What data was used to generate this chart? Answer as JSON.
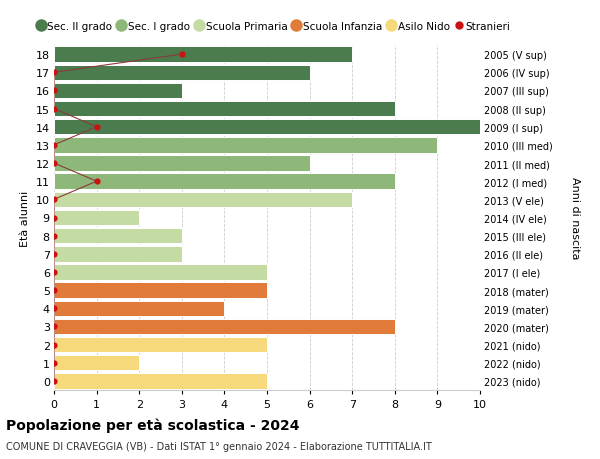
{
  "ages": [
    0,
    1,
    2,
    3,
    4,
    5,
    6,
    7,
    8,
    9,
    10,
    11,
    12,
    13,
    14,
    15,
    16,
    17,
    18
  ],
  "right_labels": [
    "2023 (nido)",
    "2022 (nido)",
    "2021 (nido)",
    "2020 (mater)",
    "2019 (mater)",
    "2018 (mater)",
    "2017 (I ele)",
    "2016 (II ele)",
    "2015 (III ele)",
    "2014 (IV ele)",
    "2013 (V ele)",
    "2012 (I med)",
    "2011 (II med)",
    "2010 (III med)",
    "2009 (I sup)",
    "2008 (II sup)",
    "2007 (III sup)",
    "2006 (IV sup)",
    "2005 (V sup)"
  ],
  "bar_values": [
    5,
    2,
    5,
    8,
    4,
    5,
    5,
    3,
    3,
    2,
    7,
    8,
    6,
    9,
    10,
    8,
    3,
    6,
    7
  ],
  "bar_colors": [
    "#f5d97a",
    "#f5d97a",
    "#f5d97a",
    "#e07b39",
    "#e07b39",
    "#e07b39",
    "#c5dba4",
    "#c5dba4",
    "#c5dba4",
    "#c5dba4",
    "#c5dba4",
    "#8db87a",
    "#8db87a",
    "#8db87a",
    "#4a7c4e",
    "#4a7c4e",
    "#4a7c4e",
    "#4a7c4e",
    "#4a7c4e"
  ],
  "stranieri_values": [
    0,
    0,
    0,
    0,
    0,
    0,
    0,
    0,
    0,
    0,
    0,
    1,
    0,
    0,
    1,
    0,
    0,
    0,
    3
  ],
  "legend_labels": [
    "Sec. II grado",
    "Sec. I grado",
    "Scuola Primaria",
    "Scuola Infanzia",
    "Asilo Nido",
    "Stranieri"
  ],
  "legend_colors": [
    "#4a7c4e",
    "#8db87a",
    "#c5dba4",
    "#e07b39",
    "#f5d97a",
    "#cc1111"
  ],
  "title": "Popolazione per età scolastica - 2024",
  "subtitle": "COMUNE DI CRAVEGGIA (VB) - Dati ISTAT 1° gennaio 2024 - Elaborazione TUTTITALIA.IT",
  "ylabel": "Età alunni",
  "right_ylabel": "Anni di nascita",
  "xlim": [
    0,
    10
  ],
  "ylim": [
    -0.5,
    18.5
  ],
  "bg_color": "#ffffff",
  "grid_color": "#cccccc"
}
